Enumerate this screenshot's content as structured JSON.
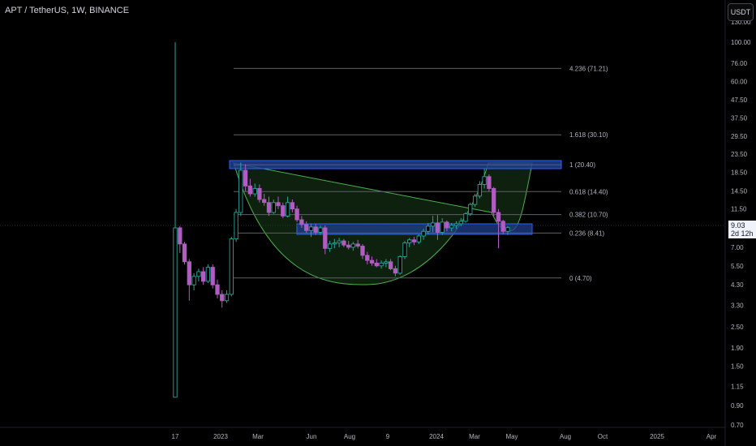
{
  "header": {
    "symbol_title": "APT / TetherUS, 1W, BINANCE",
    "unit_button": "USDT"
  },
  "current_price": {
    "value": "9.03",
    "countdown": "2d 12h"
  },
  "colors": {
    "background": "#000000",
    "bull": "#26a69a",
    "bear": "#b05cc0",
    "cup_fill": "#1a3d1a",
    "cup_stroke": "#4caf50",
    "zone_fill": "#1f3f8f",
    "fib_line": "#5d6066",
    "price_line": "#2a2e39"
  },
  "price_axis": {
    "ticks": [
      "130.00",
      "100.00",
      "76.00",
      "60.00",
      "47.50",
      "37.50",
      "29.50",
      "23.50",
      "18.50",
      "14.50",
      "11.50",
      "9.00",
      "7.00",
      "5.50",
      "4.30",
      "3.30",
      "2.50",
      "1.90",
      "1.50",
      "1.15",
      "0.90",
      "0.70"
    ]
  },
  "time_axis": {
    "ticks": [
      "17",
      "2023",
      "Mar",
      "Jun",
      "Aug",
      "9",
      "2024",
      "Mar",
      "May",
      "Aug",
      "Oct",
      "2025",
      "Apr"
    ]
  },
  "fib_levels": [
    {
      "ratio": "4.236",
      "price": "71.21",
      "label": "4.236 (71.21)"
    },
    {
      "ratio": "1.618",
      "price": "30.10",
      "label": "1.618 (30.10)"
    },
    {
      "ratio": "1",
      "price": "20.40",
      "label": "1 (20.40)"
    },
    {
      "ratio": "0.618",
      "price": "14.40",
      "label": "0.618 (14.40)"
    },
    {
      "ratio": "0.382",
      "price": "10.70",
      "label": "0.382 (10.70)"
    },
    {
      "ratio": "0.236",
      "price": "8.41",
      "label": "0.236 (8.41)"
    },
    {
      "ratio": "0",
      "price": "4.70",
      "label": "0 (4.70)"
    }
  ],
  "chart_data": {
    "type": "candlestick",
    "scale": "log",
    "ylim": [
      0.7,
      130
    ],
    "series": [
      {
        "o": 1.0,
        "h": 100,
        "l": 1.0,
        "c": 9.0
      },
      {
        "o": 9.0,
        "h": 9.2,
        "l": 6.5,
        "c": 7.3
      },
      {
        "o": 7.3,
        "h": 7.5,
        "l": 5.6,
        "c": 5.8
      },
      {
        "o": 5.8,
        "h": 6.0,
        "l": 3.5,
        "c": 4.3
      },
      {
        "o": 4.3,
        "h": 5.0,
        "l": 4.0,
        "c": 4.8
      },
      {
        "o": 4.8,
        "h": 5.3,
        "l": 4.5,
        "c": 5.1
      },
      {
        "o": 5.1,
        "h": 5.4,
        "l": 4.3,
        "c": 4.5
      },
      {
        "o": 4.5,
        "h": 5.6,
        "l": 4.4,
        "c": 5.4
      },
      {
        "o": 5.4,
        "h": 5.6,
        "l": 4.1,
        "c": 4.3
      },
      {
        "o": 4.3,
        "h": 4.6,
        "l": 3.6,
        "c": 3.8
      },
      {
        "o": 3.8,
        "h": 4.0,
        "l": 3.2,
        "c": 3.5
      },
      {
        "o": 3.5,
        "h": 4.0,
        "l": 3.4,
        "c": 3.8
      },
      {
        "o": 3.8,
        "h": 8.0,
        "l": 3.7,
        "c": 7.8
      },
      {
        "o": 7.8,
        "h": 11.5,
        "l": 7.5,
        "c": 11.0
      },
      {
        "o": 11.0,
        "h": 21.0,
        "l": 10.5,
        "c": 19.0
      },
      {
        "o": 19.0,
        "h": 20.5,
        "l": 14.5,
        "c": 15.5
      },
      {
        "o": 15.5,
        "h": 17.0,
        "l": 13.5,
        "c": 14.0
      },
      {
        "o": 14.0,
        "h": 16.0,
        "l": 13.5,
        "c": 15.0
      },
      {
        "o": 15.0,
        "h": 15.8,
        "l": 12.5,
        "c": 13.0
      },
      {
        "o": 13.0,
        "h": 14.0,
        "l": 12.0,
        "c": 12.5
      },
      {
        "o": 12.5,
        "h": 13.5,
        "l": 10.5,
        "c": 11.0
      },
      {
        "o": 11.0,
        "h": 13.0,
        "l": 10.8,
        "c": 12.5
      },
      {
        "o": 12.5,
        "h": 13.5,
        "l": 11.5,
        "c": 12.0
      },
      {
        "o": 12.0,
        "h": 12.5,
        "l": 10.2,
        "c": 10.5
      },
      {
        "o": 10.5,
        "h": 13.5,
        "l": 10.3,
        "c": 12.5
      },
      {
        "o": 12.5,
        "h": 13.0,
        "l": 11.0,
        "c": 11.5
      },
      {
        "o": 11.5,
        "h": 12.0,
        "l": 9.7,
        "c": 10.0
      },
      {
        "o": 10.0,
        "h": 10.5,
        "l": 9.0,
        "c": 9.4
      },
      {
        "o": 9.4,
        "h": 9.8,
        "l": 8.4,
        "c": 8.7
      },
      {
        "o": 8.7,
        "h": 9.5,
        "l": 8.0,
        "c": 9.1
      },
      {
        "o": 9.1,
        "h": 9.5,
        "l": 8.2,
        "c": 8.5
      },
      {
        "o": 8.5,
        "h": 9.3,
        "l": 8.2,
        "c": 9.0
      },
      {
        "o": 9.0,
        "h": 9.3,
        "l": 6.4,
        "c": 6.9
      },
      {
        "o": 6.9,
        "h": 7.6,
        "l": 6.6,
        "c": 7.3
      },
      {
        "o": 7.3,
        "h": 7.8,
        "l": 6.9,
        "c": 7.4
      },
      {
        "o": 7.4,
        "h": 7.9,
        "l": 7.0,
        "c": 7.6
      },
      {
        "o": 7.6,
        "h": 7.8,
        "l": 7.0,
        "c": 7.2
      },
      {
        "o": 7.2,
        "h": 7.6,
        "l": 6.8,
        "c": 7.0
      },
      {
        "o": 7.0,
        "h": 7.5,
        "l": 6.7,
        "c": 7.3
      },
      {
        "o": 7.3,
        "h": 7.7,
        "l": 6.9,
        "c": 7.1
      },
      {
        "o": 7.1,
        "h": 7.3,
        "l": 6.0,
        "c": 6.3
      },
      {
        "o": 6.3,
        "h": 6.6,
        "l": 5.6,
        "c": 5.9
      },
      {
        "o": 5.9,
        "h": 6.2,
        "l": 5.5,
        "c": 5.7
      },
      {
        "o": 5.7,
        "h": 6.0,
        "l": 5.4,
        "c": 5.5
      },
      {
        "o": 5.5,
        "h": 5.9,
        "l": 5.3,
        "c": 5.7
      },
      {
        "o": 5.7,
        "h": 6.0,
        "l": 5.4,
        "c": 5.8
      },
      {
        "o": 5.8,
        "h": 6.0,
        "l": 5.2,
        "c": 5.3
      },
      {
        "o": 5.3,
        "h": 5.5,
        "l": 4.8,
        "c": 5.0
      },
      {
        "o": 5.0,
        "h": 6.3,
        "l": 4.9,
        "c": 6.2
      },
      {
        "o": 6.2,
        "h": 7.6,
        "l": 6.0,
        "c": 7.4
      },
      {
        "o": 7.4,
        "h": 7.9,
        "l": 7.0,
        "c": 7.7
      },
      {
        "o": 7.7,
        "h": 8.0,
        "l": 7.2,
        "c": 7.5
      },
      {
        "o": 7.5,
        "h": 8.3,
        "l": 7.3,
        "c": 8.1
      },
      {
        "o": 8.1,
        "h": 8.9,
        "l": 7.7,
        "c": 8.6
      },
      {
        "o": 8.6,
        "h": 9.6,
        "l": 8.3,
        "c": 9.2
      },
      {
        "o": 9.2,
        "h": 10.5,
        "l": 8.5,
        "c": 9.6
      },
      {
        "o": 9.6,
        "h": 10.6,
        "l": 7.7,
        "c": 8.5
      },
      {
        "o": 8.5,
        "h": 10.2,
        "l": 8.2,
        "c": 9.7
      },
      {
        "o": 9.7,
        "h": 9.9,
        "l": 8.6,
        "c": 9.0
      },
      {
        "o": 9.0,
        "h": 9.6,
        "l": 8.6,
        "c": 9.3
      },
      {
        "o": 9.3,
        "h": 9.8,
        "l": 8.9,
        "c": 9.5
      },
      {
        "o": 9.5,
        "h": 10.2,
        "l": 9.2,
        "c": 9.8
      },
      {
        "o": 9.8,
        "h": 11.0,
        "l": 9.6,
        "c": 10.8
      },
      {
        "o": 10.8,
        "h": 12.5,
        "l": 10.5,
        "c": 12.2
      },
      {
        "o": 12.2,
        "h": 14.0,
        "l": 11.8,
        "c": 13.6
      },
      {
        "o": 13.6,
        "h": 16.5,
        "l": 13.2,
        "c": 15.8
      },
      {
        "o": 15.8,
        "h": 19.5,
        "l": 15.0,
        "c": 17.5
      },
      {
        "o": 17.5,
        "h": 18.0,
        "l": 14.5,
        "c": 15.0
      },
      {
        "o": 15.0,
        "h": 15.3,
        "l": 10.5,
        "c": 11.0
      },
      {
        "o": 11.0,
        "h": 11.5,
        "l": 6.9,
        "c": 9.8
      },
      {
        "o": 9.8,
        "h": 10.0,
        "l": 8.3,
        "c": 8.6
      },
      {
        "o": 8.6,
        "h": 9.2,
        "l": 8.2,
        "c": 9.03
      }
    ]
  }
}
